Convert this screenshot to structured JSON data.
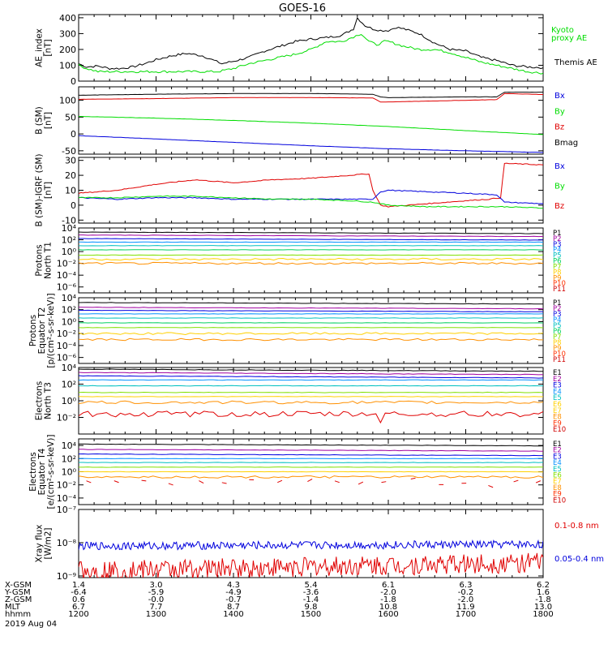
{
  "title": "GOES-16",
  "colors": {
    "black": "#000000",
    "red": "#e00000",
    "green": "#00dd00",
    "blue": "#0000dd",
    "p_palette": [
      "#000000",
      "#a000a0",
      "#0000e0",
      "#0090ff",
      "#00c0c0",
      "#00d060",
      "#80e000",
      "#ffd000",
      "#ff9000",
      "#ff3000",
      "#d00000"
    ]
  },
  "panels": [
    {
      "id": "ae",
      "ylabel": [
        "AE_index",
        "[nT]"
      ],
      "yscale": "linear",
      "ylim": [
        0,
        420
      ],
      "yticks": [
        {
          "v": 0,
          "t": "0"
        },
        {
          "v": 100,
          "t": "100"
        },
        {
          "v": 200,
          "t": "200"
        },
        {
          "v": 300,
          "t": "300"
        },
        {
          "v": 400,
          "t": "400"
        }
      ],
      "legend": [
        {
          "text": "Kyoto",
          "color": "#00dd00"
        },
        {
          "text": "proxy AE",
          "color": "#00dd00"
        },
        {
          "text": "",
          "color": "#ffffff"
        },
        {
          "text": "Themis AE",
          "color": "#000000"
        }
      ],
      "series": [
        {
          "name": "Themis AE",
          "color": "#000000",
          "x": [
            1200,
            1210,
            1225,
            1240,
            1255,
            1270,
            1285,
            1300,
            1320,
            1340,
            1360,
            1375,
            1385,
            1400,
            1420,
            1440,
            1460,
            1480,
            1500,
            1520,
            1540,
            1555,
            1560,
            1570,
            1580,
            1590,
            1600,
            1610,
            1620,
            1640,
            1660,
            1680,
            1700,
            1720,
            1740,
            1760,
            1780,
            1800
          ],
          "y": [
            110,
            90,
            95,
            80,
            80,
            90,
            110,
            135,
            160,
            175,
            160,
            130,
            110,
            125,
            150,
            190,
            220,
            250,
            265,
            275,
            290,
            330,
            400,
            350,
            330,
            320,
            320,
            340,
            330,
            300,
            240,
            200,
            190,
            150,
            130,
            100,
            90,
            85
          ]
        },
        {
          "name": "Kyoto",
          "color": "#00dd00",
          "x": [
            1200,
            1210,
            1225,
            1240,
            1260,
            1280,
            1300,
            1320,
            1340,
            1360,
            1380,
            1400,
            1420,
            1440,
            1460,
            1480,
            1500,
            1520,
            1540,
            1555,
            1565,
            1575,
            1585,
            1595,
            1600,
            1620,
            1640,
            1660,
            1680,
            1700,
            1720,
            1740,
            1760,
            1780,
            1800
          ],
          "y": [
            100,
            80,
            60,
            60,
            60,
            60,
            60,
            60,
            60,
            60,
            60,
            80,
            110,
            130,
            150,
            170,
            200,
            250,
            250,
            280,
            300,
            250,
            230,
            250,
            250,
            220,
            200,
            200,
            180,
            150,
            120,
            100,
            80,
            60,
            50
          ]
        }
      ]
    },
    {
      "id": "b",
      "ylabel": [
        "B (SM)",
        "[nT]"
      ],
      "yscale": "linear",
      "ylim": [
        -60,
        140
      ],
      "yticks": [
        {
          "v": -50,
          "t": "-50"
        },
        {
          "v": 0,
          "t": "0"
        },
        {
          "v": 50,
          "t": "50"
        },
        {
          "v": 100,
          "t": "100"
        }
      ],
      "legend": [
        {
          "text": "Bx",
          "color": "#0000dd"
        },
        {
          "text": "By",
          "color": "#00dd00"
        },
        {
          "text": "Bz",
          "color": "#e00000"
        },
        {
          "text": "Bmag",
          "color": "#000000"
        }
      ],
      "series": [
        {
          "name": "Bmag",
          "color": "#000000",
          "x": [
            1200,
            1300,
            1400,
            1500,
            1580,
            1590,
            1600,
            1700,
            1740,
            1750,
            1800
          ],
          "y": [
            115,
            118,
            120,
            120,
            118,
            110,
            108,
            110,
            110,
            124,
            124
          ]
        },
        {
          "name": "Bz",
          "color": "#e00000",
          "x": [
            1200,
            1300,
            1400,
            1500,
            1580,
            1590,
            1600,
            1700,
            1740,
            1750,
            1800
          ],
          "y": [
            103,
            105,
            108,
            108,
            107,
            95,
            95,
            100,
            102,
            120,
            117
          ]
        },
        {
          "name": "By",
          "color": "#00dd00",
          "x": [
            1200,
            1300,
            1400,
            1500,
            1600,
            1700,
            1800
          ],
          "y": [
            52,
            47,
            40,
            32,
            22,
            10,
            -2
          ]
        },
        {
          "name": "Bx",
          "color": "#0000dd",
          "x": [
            1200,
            1300,
            1400,
            1500,
            1600,
            1700,
            1800
          ],
          "y": [
            -5,
            -15,
            -25,
            -35,
            -44,
            -50,
            -55
          ]
        }
      ]
    },
    {
      "id": "b-igrf",
      "ylabel": [
        "B (SM)-IGRF (SM)",
        "[nT]"
      ],
      "yscale": "linear",
      "ylim": [
        -12,
        32
      ],
      "yticks": [
        {
          "v": -10,
          "t": "-10"
        },
        {
          "v": 0,
          "t": "0"
        },
        {
          "v": 10,
          "t": "10"
        },
        {
          "v": 20,
          "t": "20"
        },
        {
          "v": 30,
          "t": "30"
        }
      ],
      "legend": [
        {
          "text": "Bx",
          "color": "#0000dd"
        },
        {
          "text": "By",
          "color": "#00dd00"
        },
        {
          "text": "Bz",
          "color": "#e00000"
        }
      ],
      "series": [
        {
          "name": "Bz",
          "color": "#e00000",
          "x": [
            1200,
            1250,
            1300,
            1350,
            1400,
            1450,
            1500,
            1550,
            1575,
            1580,
            1590,
            1600,
            1650,
            1700,
            1730,
            1745,
            1750,
            1800
          ],
          "y": [
            8,
            10,
            14,
            17,
            15,
            17,
            18,
            20,
            21,
            10,
            0,
            -1,
            1,
            3,
            4,
            5,
            28,
            27
          ]
        },
        {
          "name": "Bx",
          "color": "#0000dd",
          "x": [
            1200,
            1250,
            1300,
            1350,
            1400,
            1450,
            1500,
            1550,
            1580,
            1590,
            1600,
            1650,
            1700,
            1740,
            1750,
            1800
          ],
          "y": [
            5,
            4,
            5,
            5,
            4,
            4,
            4,
            4,
            4,
            9,
            10,
            9,
            8,
            7,
            2,
            1
          ]
        },
        {
          "name": "By",
          "color": "#00dd00",
          "x": [
            1200,
            1250,
            1300,
            1350,
            1400,
            1450,
            1500,
            1550,
            1580,
            1600,
            1650,
            1700,
            1750,
            1800
          ],
          "y": [
            5,
            5,
            6,
            6,
            5,
            4,
            4,
            3,
            2,
            0,
            -1,
            -1,
            -1,
            -2
          ]
        }
      ]
    },
    {
      "id": "p-north",
      "ylabel": [
        "Protons",
        "North T1"
      ],
      "yscale": "log",
      "ylim": [
        -7,
        4
      ],
      "yticks": [
        {
          "v": 4,
          "t": "10⁴"
        },
        {
          "v": 2,
          "t": "10²"
        },
        {
          "v": 0,
          "t": "10⁰"
        },
        {
          "v": -2,
          "t": "10⁻²"
        },
        {
          "v": -4,
          "t": "10⁻⁴"
        },
        {
          "v": -6,
          "t": "10⁻⁶"
        }
      ],
      "legend": [
        {
          "text": "P1",
          "color": "#000000"
        },
        {
          "text": "P2",
          "color": "#a000a0"
        },
        {
          "text": "P3",
          "color": "#0000e0"
        },
        {
          "text": "P4",
          "color": "#0090ff"
        },
        {
          "text": "P5",
          "color": "#00c0c0"
        },
        {
          "text": "P6",
          "color": "#00d060"
        },
        {
          "text": "P7",
          "color": "#80e000"
        },
        {
          "text": "P8",
          "color": "#ffd000"
        },
        {
          "text": "P9",
          "color": "#ff9000"
        },
        {
          "text": "P10",
          "color": "#ff3000"
        },
        {
          "text": "P11",
          "color": "#d00000"
        }
      ],
      "levels": [
        3.3,
        2.8,
        2.2,
        1.6,
        1.0,
        0.3,
        -0.6,
        -1.3,
        -2.0
      ],
      "series_colors": [
        "#000000",
        "#a000a0",
        "#0000e0",
        "#0090ff",
        "#00c0c0",
        "#00d060",
        "#80e000",
        "#ffd000",
        "#ff9000"
      ]
    },
    {
      "id": "p-equator",
      "ylabel": [
        "Protons",
        "Equator T2",
        "[p/(cm²-s-sr-keV)]"
      ],
      "yscale": "log",
      "ylim": [
        -7,
        4
      ],
      "yticks": [
        {
          "v": 4,
          "t": "10⁴"
        },
        {
          "v": 2,
          "t": "10²"
        },
        {
          "v": 0,
          "t": "10⁰"
        },
        {
          "v": -2,
          "t": "10⁻²"
        },
        {
          "v": -4,
          "t": "10⁻⁴"
        },
        {
          "v": -6,
          "t": "10⁻⁶"
        }
      ],
      "legend": [
        {
          "text": "P1",
          "color": "#000000"
        },
        {
          "text": "P2",
          "color": "#a000a0"
        },
        {
          "text": "P3",
          "color": "#0000e0"
        },
        {
          "text": "P4",
          "color": "#0090ff"
        },
        {
          "text": "P5",
          "color": "#00c0c0"
        },
        {
          "text": "P6",
          "color": "#00d060"
        },
        {
          "text": "P7",
          "color": "#80e000"
        },
        {
          "text": "P8",
          "color": "#ffd000"
        },
        {
          "text": "P9",
          "color": "#ff9000"
        },
        {
          "text": "P10",
          "color": "#ff3000"
        },
        {
          "text": "P11",
          "color": "#d00000"
        }
      ],
      "levels": [
        3.2,
        2.4,
        1.9,
        1.3,
        0.6,
        -0.2,
        -1.0,
        -2.0,
        -3.0
      ],
      "series_colors": [
        "#000000",
        "#a000a0",
        "#0000e0",
        "#0090ff",
        "#00c0c0",
        "#00d060",
        "#80e000",
        "#ffd000",
        "#ff9000"
      ]
    },
    {
      "id": "e-north",
      "ylabel": [
        "Electrons",
        "North T3"
      ],
      "yscale": "log",
      "ylim": [
        -4,
        4
      ],
      "yticks": [
        {
          "v": 4,
          "t": "10⁴"
        },
        {
          "v": 2,
          "t": "10²"
        },
        {
          "v": 0,
          "t": "10⁰"
        },
        {
          "v": -2,
          "t": "10⁻²"
        }
      ],
      "legend": [
        {
          "text": "E1",
          "color": "#000000"
        },
        {
          "text": "E2",
          "color": "#a000a0"
        },
        {
          "text": "E3",
          "color": "#0000e0"
        },
        {
          "text": "E4",
          "color": "#0090ff"
        },
        {
          "text": "E5",
          "color": "#00c0c0"
        },
        {
          "text": "E6",
          "color": "#ffd000"
        },
        {
          "text": "E7",
          "color": "#ffd000"
        },
        {
          "text": "E8",
          "color": "#ff9000"
        },
        {
          "text": "E9",
          "color": "#ff3000"
        },
        {
          "text": "E10",
          "color": "#d00000"
        }
      ],
      "levels": [
        3.8,
        3.4,
        3.0,
        2.5,
        1.8,
        1.0,
        0.5,
        -0.2
      ],
      "series_colors": [
        "#000000",
        "#a000a0",
        "#0000e0",
        "#0090ff",
        "#00c0c0",
        "#80e000",
        "#ffd000",
        "#ff9000"
      ],
      "noisy": {
        "color": "#e00000",
        "base": -1.6
      }
    },
    {
      "id": "e-equator",
      "ylabel": [
        "Electrons",
        "Equator T4",
        "[e/(cm²-s-sr-keV)]"
      ],
      "yscale": "log",
      "ylim": [
        -5,
        5
      ],
      "yticks": [
        {
          "v": 4,
          "t": "10⁴"
        },
        {
          "v": 2,
          "t": "10²"
        },
        {
          "v": 0,
          "t": "10⁰"
        },
        {
          "v": -2,
          "t": "10⁻²"
        },
        {
          "v": -4,
          "t": "10⁻⁴"
        }
      ],
      "legend": [
        {
          "text": "E1",
          "color": "#000000"
        },
        {
          "text": "E2",
          "color": "#a000a0"
        },
        {
          "text": "E3",
          "color": "#0000e0"
        },
        {
          "text": "E4",
          "color": "#0090ff"
        },
        {
          "text": "E5",
          "color": "#00c0c0"
        },
        {
          "text": "E6",
          "color": "#80e000"
        },
        {
          "text": "E7",
          "color": "#ffd000"
        },
        {
          "text": "E8",
          "color": "#ff9000"
        },
        {
          "text": "E9",
          "color": "#ff3000"
        },
        {
          "text": "E10",
          "color": "#d00000"
        }
      ],
      "levels": [
        4.2,
        3.4,
        2.7,
        2.0,
        1.4,
        0.7,
        0.0,
        -0.8
      ],
      "series_colors": [
        "#000000",
        "#a000a0",
        "#0000e0",
        "#0090ff",
        "#00c0c0",
        "#80e000",
        "#ffd000",
        "#ff9000"
      ],
      "dashes": {
        "color": "#e00000",
        "base": -1.6
      }
    },
    {
      "id": "xray",
      "ylabel": [
        "Xray flux",
        "[W/m2]"
      ],
      "yscale": "log",
      "ylim": [
        -9.05,
        -7
      ],
      "yticks": [
        {
          "v": -7,
          "t": "10⁻⁷"
        },
        {
          "v": -8,
          "t": "10⁻⁸"
        },
        {
          "v": -9,
          "t": "10⁻⁹"
        }
      ],
      "legend": [
        {
          "text": "0.1-0.8 nm",
          "color": "#e00000"
        },
        {
          "text": "0.05-0.4 nm",
          "color": "#0000dd"
        }
      ],
      "xray": [
        {
          "color": "#0000dd",
          "base": -8.1,
          "amp": 0.12
        },
        {
          "color": "#e00000",
          "base": -8.85,
          "amp": 0.3
        }
      ]
    }
  ],
  "x_axis": {
    "ticks": [
      1200,
      1300,
      1400,
      1500,
      1600,
      1700,
      1800
    ],
    "rows": [
      {
        "label": "X-GSM",
        "values": [
          "1.4",
          "3.0",
          "4.3",
          "5.4",
          "6.1",
          "6.3",
          "6.2"
        ]
      },
      {
        "label": "Y-GSM",
        "values": [
          "-6.4",
          "-5.9",
          "-4.9",
          "-3.6",
          "-2.0",
          "-0.2",
          "1.6"
        ]
      },
      {
        "label": "Z-GSM",
        "values": [
          "0.6",
          "-0.0",
          "-0.7",
          "-1.4",
          "-1.8",
          "-2.0",
          "-1.8"
        ]
      },
      {
        "label": "MLT",
        "values": [
          "6.7",
          "7.7",
          "8.7",
          "9.8",
          "10.8",
          "11.9",
          "13.0"
        ]
      },
      {
        "label": "hhmm",
        "values": [
          "1200",
          "1300",
          "1400",
          "1500",
          "1600",
          "1700",
          "1800"
        ]
      }
    ],
    "date": "2019 Aug 04"
  }
}
